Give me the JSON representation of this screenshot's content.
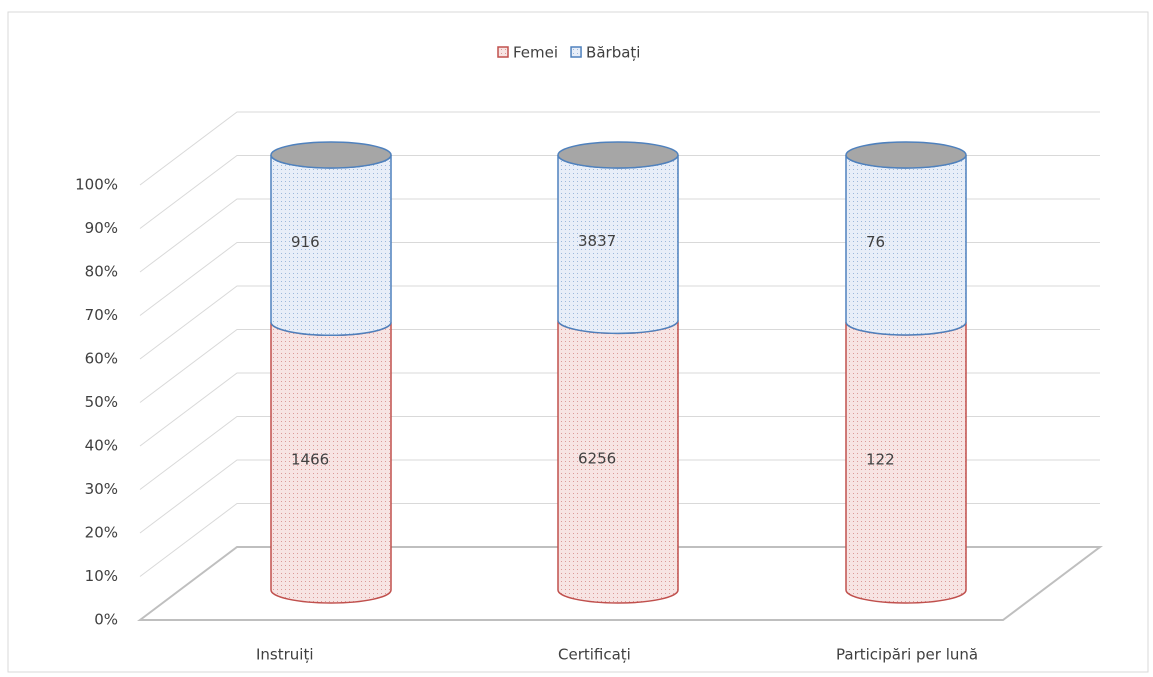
{
  "chart_data": {
    "type": "cylinder_percent_stacked",
    "categories": [
      "Instruiți",
      "Certificați",
      "Participări per lună"
    ],
    "series": [
      {
        "name": "Femei",
        "color": "#c0504d",
        "values": [
          1466,
          6256,
          122
        ]
      },
      {
        "name": "Bărbați",
        "color": "#4f81bd",
        "values": [
          916,
          3837,
          76
        ]
      }
    ],
    "ylim": [
      0,
      100
    ],
    "yticks": [
      {
        "value": 0,
        "label": "0%"
      },
      {
        "value": 10,
        "label": "10%"
      },
      {
        "value": 20,
        "label": "20%"
      },
      {
        "value": 30,
        "label": "30%"
      },
      {
        "value": 40,
        "label": "40%"
      },
      {
        "value": 50,
        "label": "50%"
      },
      {
        "value": 60,
        "label": "60%"
      },
      {
        "value": 70,
        "label": "70%"
      },
      {
        "value": 80,
        "label": "80%"
      },
      {
        "value": 90,
        "label": "90%"
      },
      {
        "value": 100,
        "label": "100%"
      }
    ],
    "grid": true,
    "legend": "top"
  }
}
